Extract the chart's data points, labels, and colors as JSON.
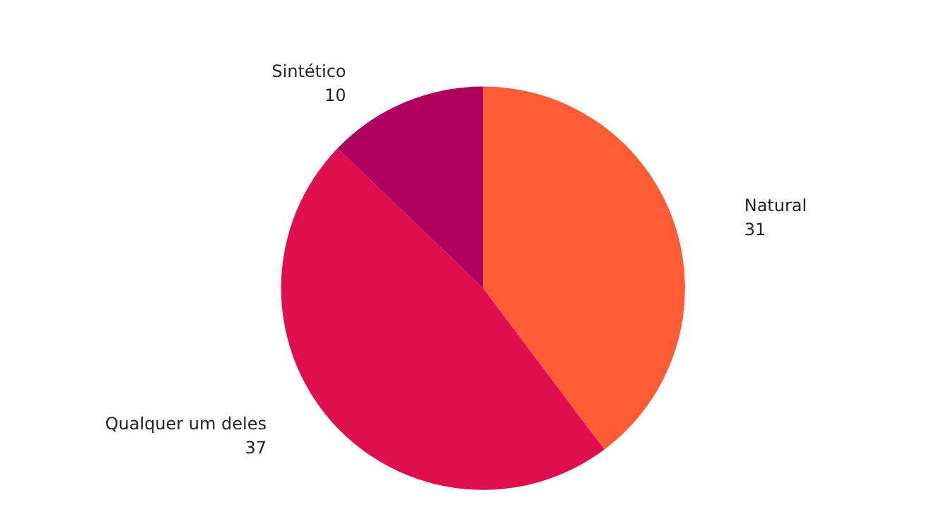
{
  "chart_data": {
    "type": "pie",
    "categories": [
      "Natural",
      "Qualquer um deles",
      "Sintético"
    ],
    "values": [
      31,
      37,
      10
    ],
    "colors": [
      "#ff5c35",
      "#e00e4f",
      "#b0005e"
    ],
    "data_labels": true
  }
}
